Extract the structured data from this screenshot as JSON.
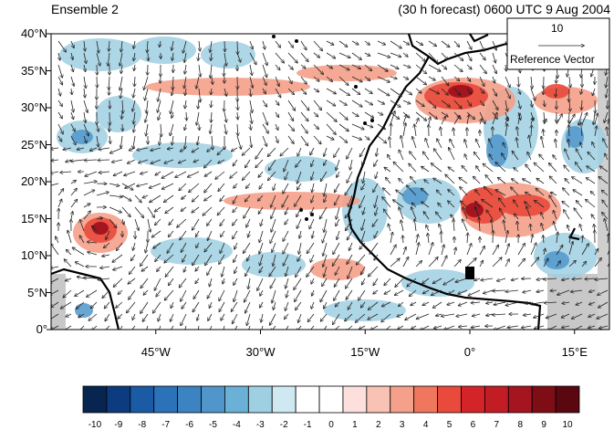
{
  "title_left": "Ensemble 2",
  "title_right": "(30 h forecast) 0600 UTC 9 Aug 2004",
  "reference_vector": {
    "magnitude": "10",
    "label": "Reference Vector"
  },
  "y_axis": {
    "ticks": [
      {
        "label": "0°",
        "value": 0
      },
      {
        "label": "5°N",
        "value": 5
      },
      {
        "label": "10°N",
        "value": 10
      },
      {
        "label": "15°N",
        "value": 15
      },
      {
        "label": "20°N",
        "value": 20
      },
      {
        "label": "25°N",
        "value": 25
      },
      {
        "label": "30°N",
        "value": 30
      },
      {
        "label": "35°N",
        "value": 35
      },
      {
        "label": "40°N",
        "value": 40
      }
    ]
  },
  "x_axis": {
    "ticks": [
      {
        "label": "45°W",
        "value": -45
      },
      {
        "label": "30°W",
        "value": -30
      },
      {
        "label": "15°W",
        "value": -15
      },
      {
        "label": "0°",
        "value": 0
      },
      {
        "label": "15°E",
        "value": 15
      }
    ]
  },
  "colorbar": {
    "labels": [
      "-10",
      "-9",
      "-8",
      "-7",
      "-6",
      "-5",
      "-4",
      "-3",
      "-2",
      "-1",
      "0",
      "1",
      "2",
      "3",
      "4",
      "5",
      "6",
      "7",
      "8",
      "9",
      "10"
    ],
    "colors": [
      "#08254f",
      "#0d3b80",
      "#1b5aa4",
      "#2c72b8",
      "#3c83c2",
      "#5096ca",
      "#6bb0d6",
      "#9fd0e2",
      "#cfe9f3",
      "#ffffff",
      "#ffffff",
      "#fde0dc",
      "#f8c2b5",
      "#f5a08a",
      "#f0765e",
      "#e94a3b",
      "#d4242a",
      "#c21c24",
      "#a51520",
      "#7e0d16",
      "#5a0710"
    ]
  }
}
